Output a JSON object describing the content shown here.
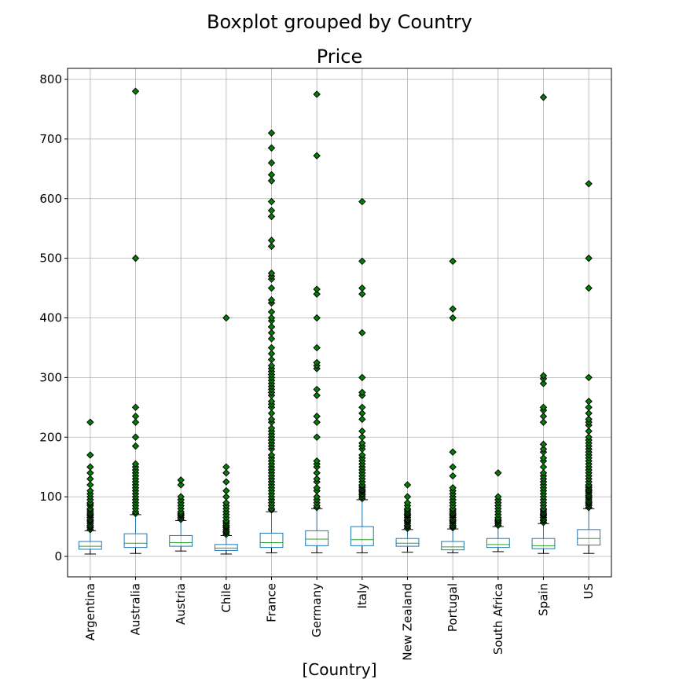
{
  "chart_data": {
    "type": "box",
    "suptitle": "Boxplot grouped by Country",
    "title": "Price",
    "xlabel": "[Country]",
    "ylabel": "",
    "ylim": [
      -35,
      820
    ],
    "yticks": [
      0,
      100,
      200,
      300,
      400,
      500,
      600,
      700,
      800
    ],
    "grid": true,
    "colors": {
      "box": "#1f77b4",
      "median": "#2ca02c",
      "flier_fill": "#008000",
      "flier_edge": "#000000",
      "grid": "#b0b0b0"
    },
    "categories": [
      "Argentina",
      "Australia",
      "Austria",
      "Chile",
      "France",
      "Germany",
      "Italy",
      "New Zealand",
      "Portugal",
      "South Africa",
      "Spain",
      "US"
    ],
    "boxes": [
      {
        "whislo": 4,
        "q1": 12,
        "med": 17,
        "q3": 25,
        "whishi": 43,
        "fliers": [
          45,
          48,
          50,
          52,
          55,
          58,
          60,
          62,
          65,
          68,
          70,
          72,
          75,
          78,
          80,
          85,
          88,
          90,
          95,
          100,
          105,
          110,
          120,
          130,
          140,
          150,
          170,
          225
        ]
      },
      {
        "whislo": 5,
        "q1": 15,
        "med": 22,
        "q3": 38,
        "whishi": 70,
        "fliers": [
          72,
          75,
          80,
          85,
          90,
          95,
          100,
          105,
          110,
          115,
          120,
          125,
          130,
          135,
          140,
          145,
          150,
          155,
          185,
          200,
          225,
          235,
          250,
          500,
          780
        ]
      },
      {
        "whislo": 9,
        "q1": 17,
        "med": 23,
        "q3": 35,
        "whishi": 60,
        "fliers": [
          62,
          65,
          68,
          70,
          72,
          75,
          80,
          85,
          90,
          95,
          100,
          120,
          128
        ]
      },
      {
        "whislo": 4,
        "q1": 10,
        "med": 14,
        "q3": 20,
        "whishi": 35,
        "fliers": [
          37,
          40,
          42,
          45,
          48,
          50,
          52,
          55,
          58,
          60,
          65,
          70,
          75,
          80,
          85,
          90,
          100,
          110,
          125,
          140,
          150,
          400
        ]
      },
      {
        "whislo": 6,
        "q1": 15,
        "med": 23,
        "q3": 39,
        "whishi": 75,
        "fliers": [
          78,
          80,
          85,
          90,
          95,
          100,
          105,
          110,
          115,
          120,
          125,
          130,
          135,
          140,
          145,
          150,
          155,
          160,
          165,
          170,
          180,
          185,
          190,
          195,
          200,
          205,
          210,
          215,
          225,
          230,
          240,
          250,
          255,
          260,
          270,
          275,
          280,
          285,
          290,
          295,
          300,
          305,
          310,
          315,
          320,
          330,
          340,
          350,
          365,
          375,
          385,
          395,
          400,
          410,
          425,
          430,
          450,
          465,
          470,
          475,
          520,
          530,
          570,
          580,
          595,
          630,
          640,
          660,
          685,
          710
        ]
      },
      {
        "whislo": 6,
        "q1": 18,
        "med": 29,
        "q3": 43,
        "whishi": 80,
        "fliers": [
          82,
          85,
          90,
          95,
          100,
          110,
          115,
          125,
          130,
          140,
          150,
          155,
          160,
          200,
          225,
          235,
          270,
          280,
          315,
          320,
          325,
          350,
          400,
          440,
          448,
          672,
          775
        ]
      },
      {
        "whislo": 6,
        "q1": 18,
        "med": 28,
        "q3": 50,
        "whishi": 95,
        "fliers": [
          97,
          100,
          103,
          105,
          108,
          110,
          112,
          115,
          118,
          120,
          125,
          130,
          135,
          140,
          145,
          150,
          155,
          160,
          165,
          170,
          180,
          185,
          190,
          200,
          210,
          230,
          240,
          250,
          270,
          275,
          300,
          375,
          440,
          450,
          495,
          595
        ]
      },
      {
        "whislo": 7,
        "q1": 17,
        "med": 22,
        "q3": 30,
        "whishi": 45,
        "fliers": [
          47,
          50,
          52,
          55,
          58,
          60,
          62,
          65,
          68,
          70,
          72,
          75,
          78,
          80,
          85,
          90,
          100,
          120
        ]
      },
      {
        "whislo": 6,
        "q1": 11,
        "med": 16,
        "q3": 25,
        "whishi": 46,
        "fliers": [
          48,
          50,
          52,
          55,
          58,
          60,
          62,
          65,
          68,
          70,
          72,
          75,
          78,
          80,
          85,
          90,
          95,
          100,
          105,
          110,
          115,
          135,
          150,
          175,
          400,
          415,
          495
        ]
      },
      {
        "whislo": 8,
        "q1": 15,
        "med": 20,
        "q3": 30,
        "whishi": 50,
        "fliers": [
          52,
          55,
          58,
          60,
          62,
          65,
          70,
          75,
          80,
          85,
          90,
          95,
          100,
          140
        ]
      },
      {
        "whislo": 5,
        "q1": 13,
        "med": 18,
        "q3": 30,
        "whishi": 55,
        "fliers": [
          57,
          60,
          62,
          65,
          68,
          70,
          72,
          75,
          78,
          80,
          85,
          90,
          95,
          100,
          105,
          110,
          115,
          120,
          125,
          130,
          135,
          140,
          150,
          160,
          165,
          175,
          180,
          188,
          225,
          235,
          245,
          250,
          290,
          298,
          303,
          770
        ]
      },
      {
        "whislo": 5,
        "q1": 19,
        "med": 30,
        "q3": 45,
        "whishi": 80,
        "fliers": [
          82,
          85,
          88,
          90,
          92,
          95,
          98,
          100,
          102,
          105,
          108,
          110,
          112,
          115,
          118,
          120,
          125,
          130,
          135,
          140,
          145,
          150,
          155,
          160,
          165,
          170,
          175,
          180,
          185,
          190,
          195,
          200,
          210,
          220,
          225,
          230,
          240,
          250,
          260,
          300,
          450,
          500,
          625
        ]
      }
    ]
  }
}
